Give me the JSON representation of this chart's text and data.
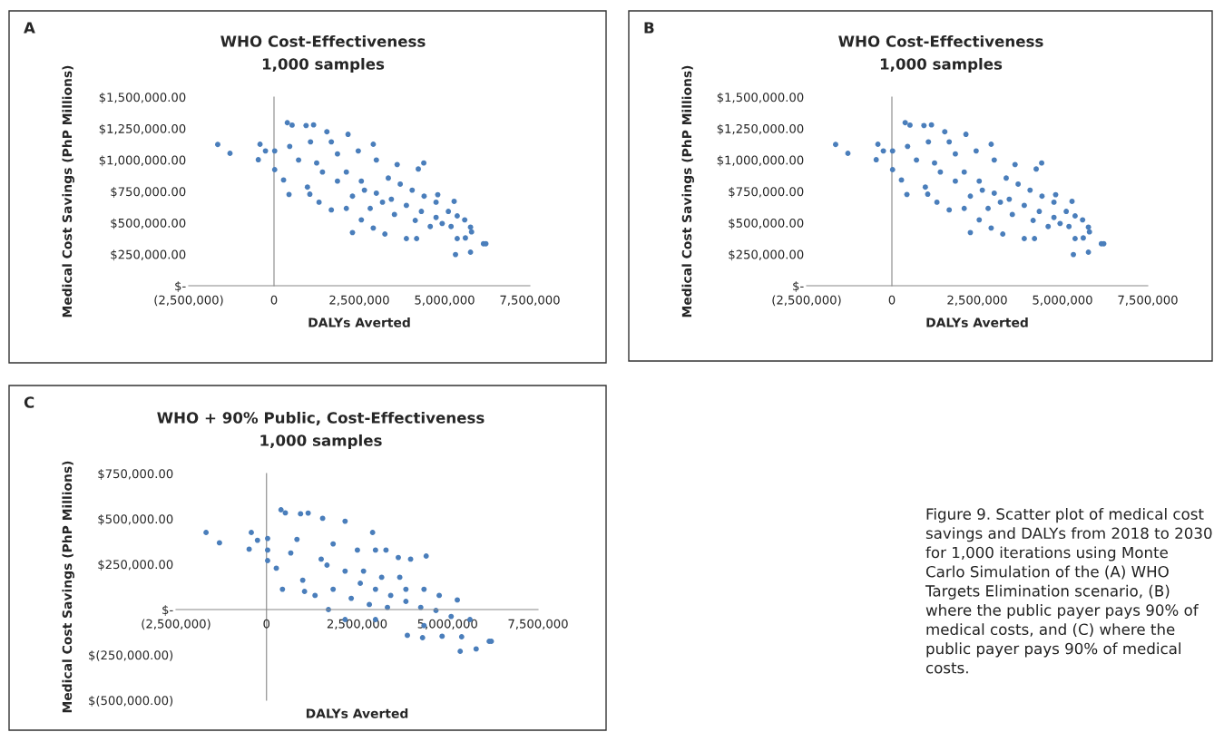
{
  "chart_data": [
    {
      "type": "scatter",
      "title": "WHO Cost-Effectiveness",
      "subtitle": "1,000 samples",
      "xlabel": "DALYs Averted",
      "ylabel": "Medical Cost Savings (PhP Millions)",
      "annotations": [
        "A"
      ],
      "marker": "circle",
      "xlim": [
        -2500000,
        7500000
      ],
      "xticks": [
        {
          "value": -2500000,
          "label": "(2,500,000)"
        },
        0,
        {
          "value": 2500000,
          "label": "2,500,000"
        },
        {
          "value": 5000000,
          "label": "5,000,000"
        },
        {
          "value": 7500000,
          "label": "7,500,000"
        }
      ],
      "ylim": [
        0,
        1500000
      ],
      "yticks": [
        {
          "value": 0,
          "label": "$-"
        },
        {
          "value": 250000,
          "label": "$250,000.00"
        },
        {
          "value": 500000,
          "label": "$500,000.00"
        },
        {
          "value": 750000,
          "label": "$750,000.00"
        },
        {
          "value": 1000000,
          "label": "$1,000,000.00"
        },
        {
          "value": 1250000,
          "label": "$1,250,000.00"
        },
        {
          "value": 1500000,
          "label": "$1,500,000.00"
        }
      ],
      "series": [
        {
          "color": "#4a7ebb",
          "x": [
            -1650000,
            -1290000,
            -460000,
            -410000,
            -250000,
            20000,
            20000,
            280000,
            440000,
            390000,
            530000,
            940000,
            1160000,
            460000,
            720000,
            980000,
            1050000,
            1320000,
            1680000,
            1550000,
            2170000,
            1860000,
            2910000,
            2300000,
            2560000,
            2910000,
            3250000,
            3610000,
            3880000,
            4230000,
            4390000,
            4180000,
            4800000,
            5280000,
            5370000,
            5590000,
            5370000,
            5320000,
            5610000,
            5760000,
            5790000,
            5760000,
            6140000,
            6210000,
            2120000,
            2560000,
            3000000,
            3440000,
            3880000,
            4320000,
            4750000,
            2300000,
            2820000,
            3530000,
            4140000,
            4580000,
            4930000,
            1860000,
            1420000,
            1250000,
            1070000,
            1680000,
            2470000,
            3000000,
            3350000,
            3700000,
            4050000,
            4400000,
            4750000,
            5110000,
            5190000,
            2650000,
            3180000,
            2120000
          ],
          "values": [
            1123000,
            1053000,
            1002000,
            1125000,
            1072000,
            1072000,
            923000,
            841000,
            726000,
            1296000,
            1277000,
            1274000,
            1279000,
            1108000,
            1000000,
            784000,
            728000,
            664000,
            603000,
            1224000,
            1204000,
            1048000,
            1125000,
            423000,
            524000,
            459000,
            411000,
            964000,
            375000,
            928000,
            976000,
            375000,
            724000,
            671000,
            555000,
            524000,
            375000,
            248000,
            380000,
            466000,
            428000,
            267000,
            334000,
            334000,
            904000,
            832000,
            736000,
            688000,
            639000,
            591000,
            543000,
            712000,
            615000,
            567000,
            519000,
            471000,
            495000,
            832000,
            904000,
            976000,
            1144000,
            1144000,
            1072000,
            1000000,
            856000,
            808000,
            760000,
            712000,
            664000,
            591000,
            471000,
            760000,
            664000,
            615000
          ]
        }
      ]
    },
    {
      "type": "scatter",
      "title": "WHO Cost-Effectiveness",
      "subtitle": "1,000 samples",
      "xlabel": "DALYs Averted",
      "ylabel": "Medical Cost Savings (PhP Millions)",
      "annotations": [
        "B"
      ],
      "marker": "circle",
      "xlim": [
        -2500000,
        7500000
      ],
      "xticks": [
        {
          "value": -2500000,
          "label": "(2,500,000)"
        },
        0,
        {
          "value": 2500000,
          "label": "2,500,000"
        },
        {
          "value": 5000000,
          "label": "5,000,000"
        },
        {
          "value": 7500000,
          "label": "7,500,000"
        }
      ],
      "ylim": [
        0,
        1500000
      ],
      "yticks": [
        {
          "value": 0,
          "label": "$-"
        },
        {
          "value": 250000,
          "label": "$250,000.00"
        },
        {
          "value": 500000,
          "label": "$500,000.00"
        },
        {
          "value": 750000,
          "label": "$750,000.00"
        },
        {
          "value": 1000000,
          "label": "$1,000,000.00"
        },
        {
          "value": 1250000,
          "label": "$1,250,000.00"
        },
        {
          "value": 1500000,
          "label": "$1,500,000.00"
        }
      ],
      "series": [
        {
          "color": "#4a7ebb",
          "x": [
            -1650000,
            -1290000,
            -460000,
            -410000,
            -250000,
            20000,
            20000,
            280000,
            440000,
            390000,
            530000,
            940000,
            1160000,
            460000,
            720000,
            980000,
            1050000,
            1320000,
            1680000,
            1550000,
            2170000,
            1860000,
            2910000,
            2300000,
            2560000,
            2910000,
            3250000,
            3610000,
            3880000,
            4230000,
            4390000,
            4180000,
            4800000,
            5280000,
            5370000,
            5590000,
            5370000,
            5320000,
            5610000,
            5760000,
            5790000,
            5760000,
            6140000,
            6210000,
            2120000,
            2560000,
            3000000,
            3440000,
            3880000,
            4320000,
            4750000,
            2300000,
            2820000,
            3530000,
            4140000,
            4580000,
            4930000,
            1860000,
            1420000,
            1250000,
            1070000,
            1680000,
            2470000,
            3000000,
            3350000,
            3700000,
            4050000,
            4400000,
            4750000,
            5110000,
            5190000,
            2650000,
            3180000,
            2120000
          ],
          "values": [
            1123000,
            1053000,
            1002000,
            1125000,
            1072000,
            1072000,
            923000,
            841000,
            726000,
            1296000,
            1277000,
            1274000,
            1279000,
            1108000,
            1000000,
            784000,
            728000,
            664000,
            603000,
            1224000,
            1204000,
            1048000,
            1125000,
            423000,
            524000,
            459000,
            411000,
            964000,
            375000,
            928000,
            976000,
            375000,
            724000,
            671000,
            555000,
            524000,
            375000,
            248000,
            380000,
            466000,
            428000,
            267000,
            334000,
            334000,
            904000,
            832000,
            736000,
            688000,
            639000,
            591000,
            543000,
            712000,
            615000,
            567000,
            519000,
            471000,
            495000,
            832000,
            904000,
            976000,
            1144000,
            1144000,
            1072000,
            1000000,
            856000,
            808000,
            760000,
            712000,
            664000,
            591000,
            471000,
            760000,
            664000,
            615000
          ]
        }
      ]
    },
    {
      "type": "scatter",
      "title": "WHO + 90% Public, Cost-Effectiveness",
      "subtitle": "1,000 samples",
      "xlabel": "DALYs Averted",
      "ylabel": "Medical Cost Savings (PhP Millions)",
      "annotations": [
        "C",
        "Figure 9. Scatter plot of medical cost savings and DALYs from 2018 to 2030 for 1,000 iterations using Monte Carlo Simulation of the (A) WHO Targets Elimination scenario, (B) where the public payer pays 90% of medical costs, and (C) where the public payer pays 90% of medical costs."
      ],
      "marker": "circle",
      "xlim": [
        -2500000,
        7500000
      ],
      "xticks": [
        {
          "value": -2500000,
          "label": "(2,500,000)"
        },
        0,
        {
          "value": 2500000,
          "label": "2,500,000"
        },
        {
          "value": 5000000,
          "label": "5,000,000"
        },
        {
          "value": 7500000,
          "label": "7,500,000"
        }
      ],
      "ylim": [
        -500000,
        750000
      ],
      "yticks": [
        {
          "value": -500000,
          "label": "$(500,000.00)"
        },
        {
          "value": -250000,
          "label": "$(250,000.00)"
        },
        {
          "value": 0,
          "label": "$-"
        },
        {
          "value": 250000,
          "label": "$250,000.00"
        },
        {
          "value": 500000,
          "label": "$500,000.00"
        },
        {
          "value": 750000,
          "label": "$750,000.00"
        }
      ],
      "series": [
        {
          "color": "#4a7ebb",
          "x": [
            -1670000,
            -1300000,
            -480000,
            -420000,
            -250000,
            30000,
            30000,
            30000,
            270000,
            440000,
            400000,
            520000,
            940000,
            1150000,
            1550000,
            2170000,
            2930000,
            1050000,
            1340000,
            1710000,
            3640000,
            3980000,
            4410000,
            3890000,
            4310000,
            4850000,
            5350000,
            5790000,
            6150000,
            6210000,
            5390000,
            5620000,
            5270000,
            840000,
            670000,
            1000000,
            1510000,
            1840000,
            2510000,
            3010000,
            3300000,
            2170000,
            2590000,
            3010000,
            3430000,
            3850000,
            4260000,
            4680000,
            5100000,
            2340000,
            2840000,
            3340000,
            3850000,
            4350000,
            4770000,
            2680000,
            3180000,
            3680000,
            1840000,
            1670000,
            2170000,
            3010000,
            4350000
          ],
          "values": [
            425000,
            368000,
            333000,
            425000,
            382000,
            392000,
            328000,
            270000,
            228000,
            112000,
            550000,
            533000,
            528000,
            532000,
            503000,
            487000,
            425000,
            100000,
            78000,
            0,
            287000,
            278000,
            295000,
            -142000,
            -155000,
            -147000,
            -230000,
            -217000,
            -175000,
            -175000,
            -150000,
            -55000,
            53000,
            387000,
            312000,
            162000,
            278000,
            362000,
            328000,
            328000,
            328000,
            212000,
            145000,
            112000,
            78000,
            45000,
            12000,
            -5000,
            -38000,
            62000,
            28000,
            12000,
            112000,
            112000,
            78000,
            212000,
            178000,
            178000,
            112000,
            245000,
            -55000,
            -55000,
            -88000
          ]
        }
      ]
    }
  ]
}
